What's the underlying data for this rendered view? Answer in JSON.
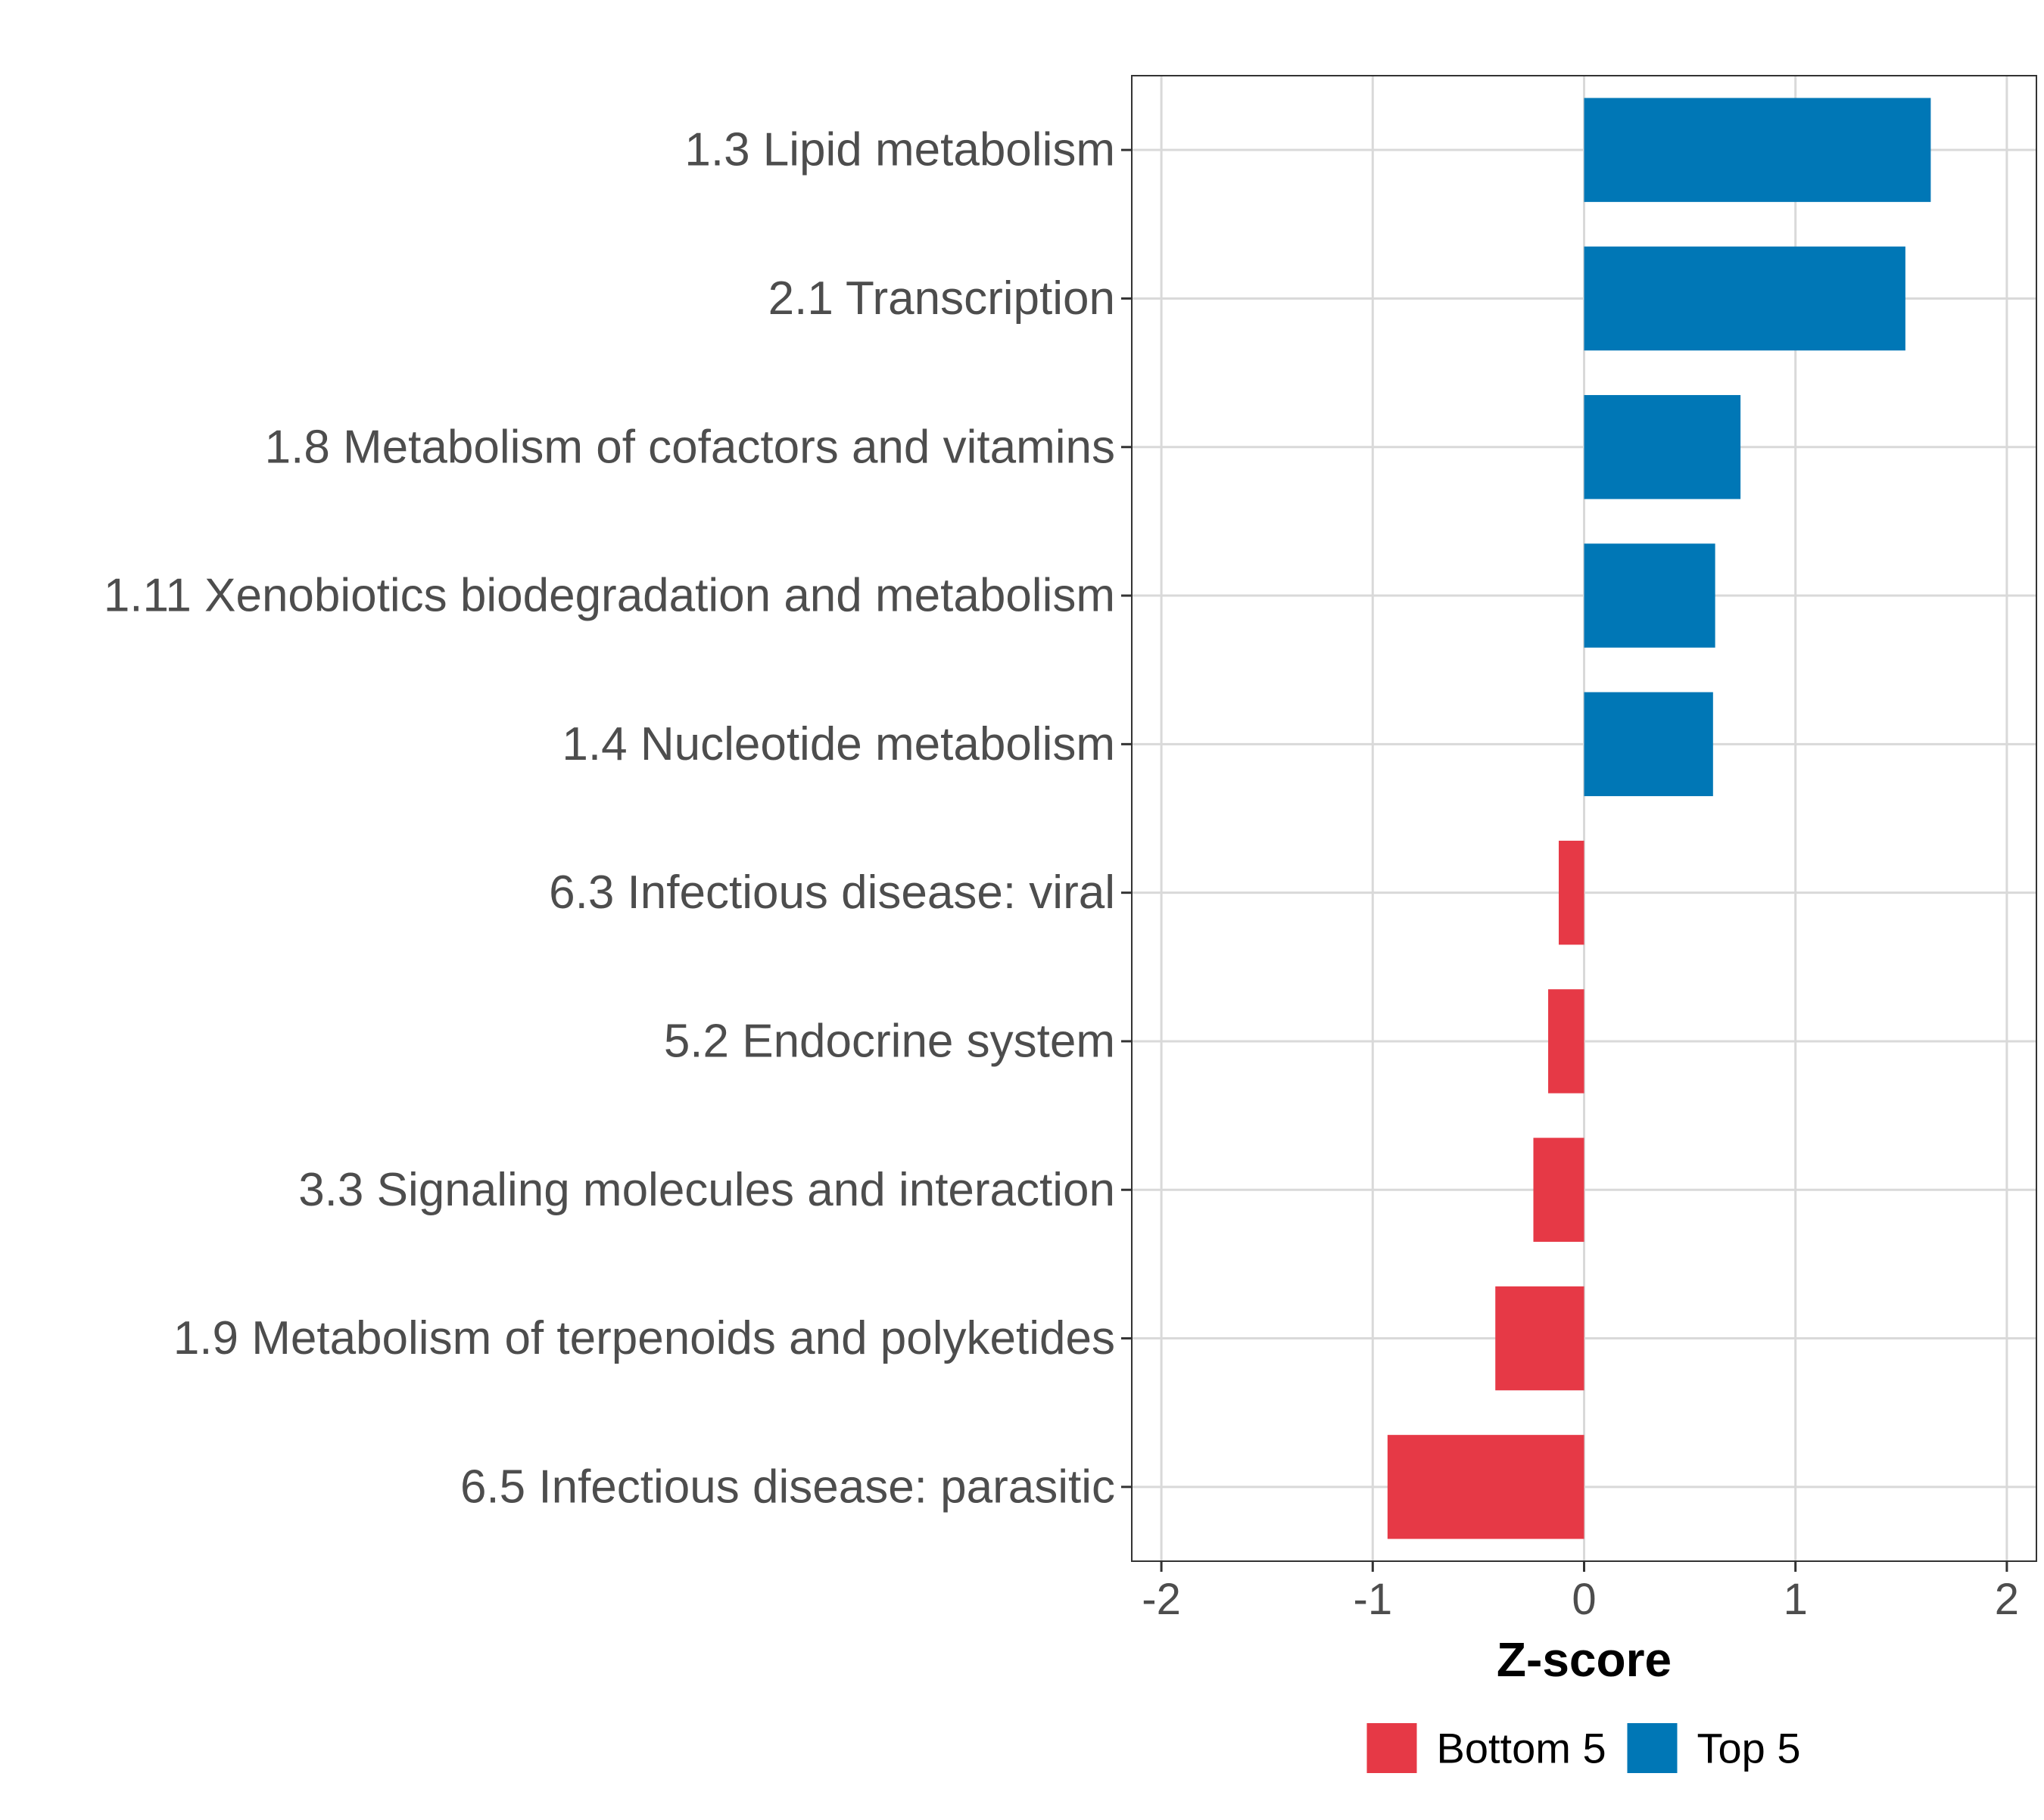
{
  "chart_data": {
    "type": "bar",
    "orientation": "horizontal",
    "title": "",
    "xlabel": "Z-score",
    "ylabel": "",
    "xlim": [
      -2.14,
      2.14
    ],
    "xticks": [
      -2,
      -1,
      0,
      1,
      2
    ],
    "xtick_labels": [
      "-2",
      "-1",
      "0",
      "1",
      "2"
    ],
    "grid": true,
    "legend_position": "bottom",
    "categories": [
      "1.3 Lipid metabolism",
      "2.1 Transcription",
      "1.8 Metabolism of cofactors and vitamins",
      "1.11 Xenobiotics biodegradation and metabolism",
      "1.4 Nucleotide metabolism",
      "6.3 Infectious disease: viral",
      "5.2 Endocrine system",
      "3.3 Signaling molecules and interaction",
      "1.9 Metabolism of terpenoids and polyketides",
      "6.5 Infectious disease: parasitic"
    ],
    "values": [
      1.64,
      1.52,
      0.74,
      0.62,
      0.61,
      -0.12,
      -0.17,
      -0.24,
      -0.42,
      -0.93
    ],
    "groups": [
      "Top 5",
      "Top 5",
      "Top 5",
      "Top 5",
      "Top 5",
      "Bottom 5",
      "Bottom 5",
      "Bottom 5",
      "Bottom 5",
      "Bottom 5"
    ],
    "legend": [
      {
        "label": "Bottom 5",
        "color": "#E63946"
      },
      {
        "label": "Top 5",
        "color": "#0077B6"
      }
    ]
  },
  "colors": {
    "top": "#0077B6",
    "bottom": "#E63946",
    "grid": "#D9D9D9",
    "axis_text": "#4D4D4D",
    "panel_border": "#333333"
  }
}
